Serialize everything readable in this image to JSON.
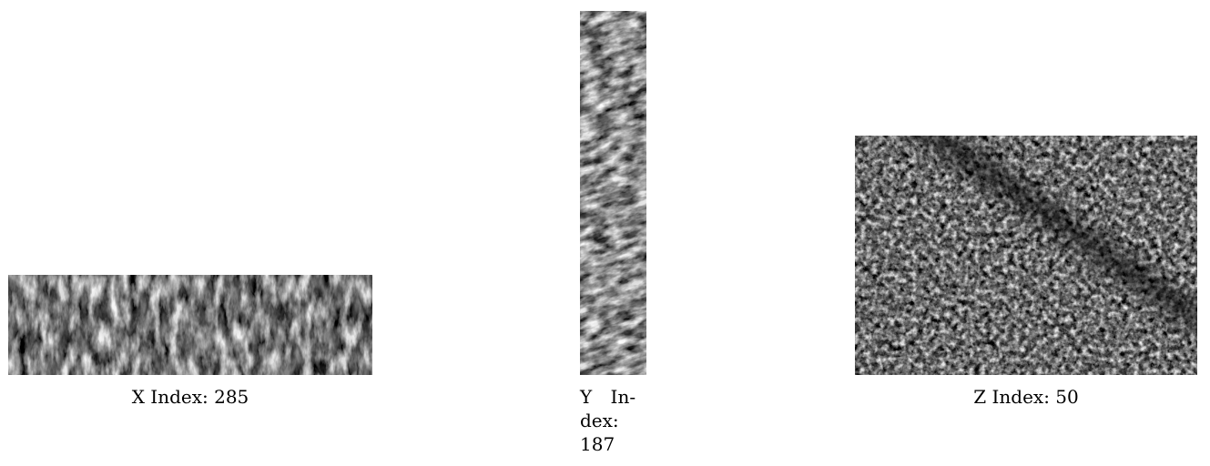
{
  "figure": {
    "panels": [
      {
        "id": "x",
        "caption": "X Index: 285"
      },
      {
        "id": "y",
        "caption_lines": [
          "Y In-",
          "dex:",
          "187"
        ]
      },
      {
        "id": "z",
        "caption": "Z Index: 50"
      }
    ]
  }
}
